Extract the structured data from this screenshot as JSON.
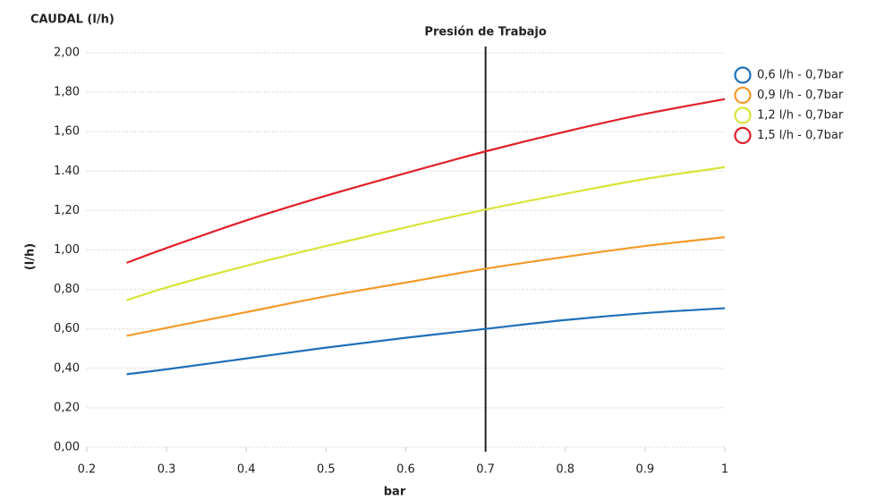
{
  "chart_data": {
    "type": "line",
    "title": "CAUDAL (l/h)",
    "y_label": "(l/h)",
    "x_label": "bar",
    "reference_line": {
      "x": 0.7,
      "label": "Presión de Trabajo",
      "color": "#222222"
    },
    "x": [
      0.25,
      0.3,
      0.4,
      0.5,
      0.6,
      0.7,
      0.8,
      0.9,
      1
    ],
    "series": [
      {
        "name": "0,6 l/h - 0,7bar",
        "color": "#1f6fb8",
        "values": [
          0.37,
          0.395,
          0.45,
          0.505,
          0.555,
          0.6,
          0.645,
          0.68,
          0.705
        ]
      },
      {
        "name": "0,9 l/h - 0,7bar",
        "color": "#f39a2b",
        "values": [
          0.565,
          0.605,
          0.685,
          0.765,
          0.835,
          0.905,
          0.965,
          1.02,
          1.065
        ]
      },
      {
        "name": "1,2 l/h - 0,7bar",
        "color": "#d9e43a",
        "values": [
          0.745,
          0.81,
          0.92,
          1.02,
          1.115,
          1.205,
          1.285,
          1.36,
          1.42
        ]
      },
      {
        "name": "1,5 l/h - 0,7bar",
        "color": "#e0202a",
        "values": [
          0.935,
          1.01,
          1.15,
          1.275,
          1.39,
          1.5,
          1.6,
          1.69,
          1.765
        ]
      }
    ],
    "xlim": [
      0.2,
      1
    ],
    "xticks": [
      0.2,
      0.3,
      0.4,
      0.5,
      0.6,
      0.7,
      0.8,
      0.9,
      1
    ],
    "ylim": [
      0,
      2
    ],
    "yticks": [
      {
        "value": 0,
        "label": "0,00"
      },
      {
        "value": 0.2,
        "label": "0,20"
      },
      {
        "value": 0.4,
        "label": "0,40"
      },
      {
        "value": 0.6,
        "label": "0,60"
      },
      {
        "value": 0.8,
        "label": "0,80"
      },
      {
        "value": 1,
        "label": "1,00"
      },
      {
        "value": 1.2,
        "label": "1,20"
      },
      {
        "value": 1.4,
        "label": "1.40"
      },
      {
        "value": 1.6,
        "label": "1,60"
      },
      {
        "value": 1.8,
        "label": "1,80"
      },
      {
        "value": 2,
        "label": "2,00"
      }
    ],
    "grid": true,
    "legend": "right"
  }
}
